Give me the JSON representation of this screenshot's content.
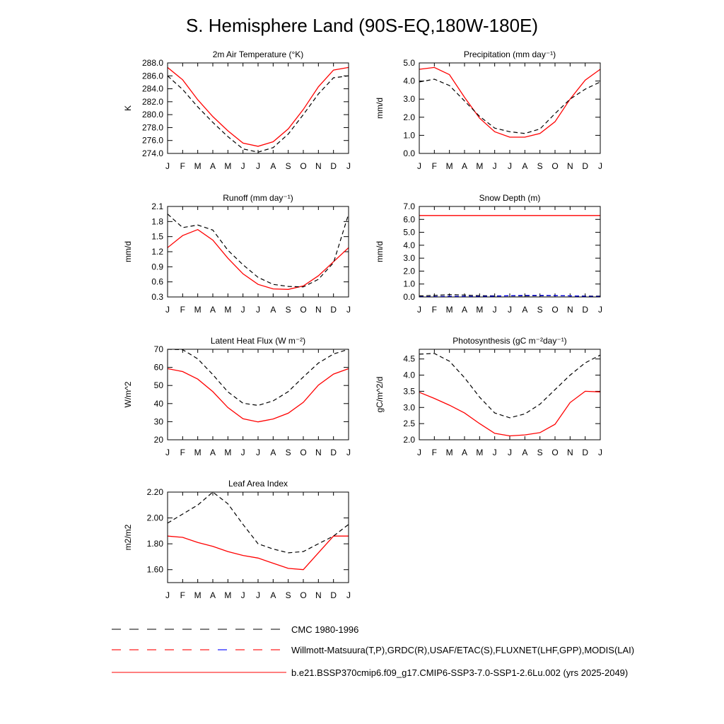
{
  "figure": {
    "title": "S. Hemisphere Land (90S-EQ,180W-180E)"
  },
  "months": [
    "J",
    "F",
    "M",
    "A",
    "M",
    "J",
    "J",
    "A",
    "S",
    "O",
    "N",
    "D",
    "J"
  ],
  "legend": [
    {
      "label": "CMC 1980-1996",
      "style": "dashed-black"
    },
    {
      "label": "Willmott-Matsuura(T,P),GRDC(R),USAF/ETAC(S),FLUXNET(LHF,GPP),MODIS(LAI)",
      "style": "dashed-red-blue"
    },
    {
      "label": "b.e21.BSSP370cmip6.f09_g17.CMIP6-SSP3-7.0-SSP1-2.6Lu.002 (yrs 2025-2049)",
      "style": "solid-red"
    }
  ],
  "colors": {
    "model": "#ff0000",
    "obs": "#000000",
    "obs_alt": "#0000ff",
    "axis": "#000000"
  },
  "chart_data": [
    {
      "type": "line",
      "title": "2m Air Temperature (°K)",
      "ylabel": "K",
      "ylim": [
        274,
        288
      ],
      "yticks": [
        "274.0",
        "276.0",
        "278.0",
        "280.0",
        "282.0",
        "284.0",
        "286.0",
        "288.0"
      ],
      "series": [
        {
          "style": "solid-red",
          "values": [
            287.3,
            285.4,
            282.3,
            279.7,
            277.5,
            275.6,
            275.1,
            275.8,
            277.8,
            280.8,
            284.3,
            286.9,
            287.3
          ]
        },
        {
          "style": "dashed-black",
          "values": [
            286.0,
            283.9,
            281.2,
            278.8,
            276.6,
            274.7,
            274.2,
            274.9,
            277.0,
            280.0,
            283.2,
            285.7,
            286.0
          ]
        }
      ]
    },
    {
      "type": "line",
      "title": "Precipitation (mm day⁻¹)",
      "ylabel": "mm/d",
      "ylim": [
        0,
        5
      ],
      "yticks": [
        "0.0",
        "1.0",
        "2.0",
        "3.0",
        "4.0",
        "5.0"
      ],
      "series": [
        {
          "style": "solid-red",
          "values": [
            4.65,
            4.75,
            4.35,
            3.1,
            1.95,
            1.2,
            0.9,
            0.9,
            1.1,
            1.75,
            3.0,
            4.05,
            4.65
          ]
        },
        {
          "style": "dashed-black",
          "values": [
            3.95,
            4.1,
            3.75,
            2.9,
            2.05,
            1.4,
            1.2,
            1.1,
            1.35,
            2.2,
            3.0,
            3.55,
            3.95
          ]
        }
      ]
    },
    {
      "type": "line",
      "title": "Runoff (mm day⁻¹)",
      "ylabel": "mm/d",
      "ylim": [
        0.3,
        2.1
      ],
      "yticks": [
        "0.3",
        "0.6",
        "0.9",
        "1.2",
        "1.5",
        "1.8",
        "2.1"
      ],
      "series": [
        {
          "style": "solid-red",
          "values": [
            1.28,
            1.52,
            1.64,
            1.43,
            1.07,
            0.76,
            0.55,
            0.46,
            0.45,
            0.52,
            0.72,
            1.0,
            1.28
          ]
        },
        {
          "style": "dashed-black",
          "values": [
            1.95,
            1.68,
            1.73,
            1.63,
            1.23,
            0.94,
            0.69,
            0.55,
            0.51,
            0.5,
            0.65,
            0.98,
            1.95
          ]
        }
      ]
    },
    {
      "type": "line",
      "title": "Snow Depth (m)",
      "ylabel": "mm/d",
      "ylim": [
        0,
        7
      ],
      "yticks": [
        "0.0",
        "1.0",
        "2.0",
        "3.0",
        "4.0",
        "5.0",
        "6.0",
        "7.0"
      ],
      "series": [
        {
          "style": "solid-red",
          "values": [
            6.3,
            6.3,
            6.3,
            6.3,
            6.3,
            6.3,
            6.3,
            6.3,
            6.3,
            6.3,
            6.3,
            6.3,
            6.3
          ]
        },
        {
          "style": "dashed-black",
          "values": [
            0.08,
            0.12,
            0.18,
            0.15,
            0.1,
            0.08,
            0.08,
            0.08,
            0.09,
            0.1,
            0.08,
            0.07,
            0.06
          ]
        },
        {
          "style": "dashed-blue",
          "values": [
            0.02,
            0.03,
            0.05,
            0.05,
            0.04,
            0.06,
            0.1,
            0.12,
            0.12,
            0.11,
            0.08,
            0.05,
            0.03
          ]
        }
      ]
    },
    {
      "type": "line",
      "title": "Latent Heat Flux (W m⁻²)",
      "ylabel": "W/m^2",
      "ylim": [
        20,
        70
      ],
      "yticks": [
        "20",
        "30",
        "40",
        "50",
        "60",
        "70"
      ],
      "series": [
        {
          "style": "solid-red",
          "values": [
            59.3,
            57.7,
            53.5,
            46.6,
            37.8,
            31.6,
            29.9,
            31.5,
            34.7,
            40.7,
            50.2,
            56.3,
            59.3
          ]
        },
        {
          "style": "dashed-black",
          "values": [
            70.0,
            69.8,
            64.7,
            56.0,
            46.5,
            40.2,
            39.0,
            41.5,
            46.6,
            54.7,
            62.4,
            67.4,
            70.0
          ]
        }
      ]
    },
    {
      "type": "line",
      "title": "Photosynthesis (gC m⁻²day⁻¹)",
      "ylabel": "gC/m^2/d",
      "ylim": [
        2.0,
        4.8
      ],
      "yticks": [
        "2.0",
        "2.5",
        "3.0",
        "3.5",
        "4.0",
        "4.5"
      ],
      "series": [
        {
          "style": "solid-red",
          "values": [
            3.47,
            3.28,
            3.07,
            2.83,
            2.5,
            2.2,
            2.12,
            2.15,
            2.22,
            2.48,
            3.15,
            3.5,
            3.48
          ]
        },
        {
          "style": "dashed-black",
          "values": [
            4.65,
            4.67,
            4.43,
            3.92,
            3.32,
            2.83,
            2.68,
            2.8,
            3.1,
            3.55,
            4.0,
            4.38,
            4.62
          ]
        }
      ]
    },
    {
      "type": "line",
      "title": "Leaf Area Index",
      "ylabel": "m2/m2",
      "ylim": [
        1.5,
        2.2
      ],
      "yticks": [
        "1.60",
        "1.80",
        "2.00",
        "2.20"
      ],
      "series": [
        {
          "style": "solid-red",
          "values": [
            1.86,
            1.85,
            1.81,
            1.78,
            1.74,
            1.71,
            1.69,
            1.65,
            1.61,
            1.6,
            1.73,
            1.86,
            1.86
          ]
        },
        {
          "style": "dashed-black",
          "values": [
            1.96,
            2.03,
            2.1,
            2.2,
            2.11,
            1.95,
            1.8,
            1.76,
            1.73,
            1.74,
            1.8,
            1.86,
            1.95
          ]
        }
      ]
    }
  ]
}
